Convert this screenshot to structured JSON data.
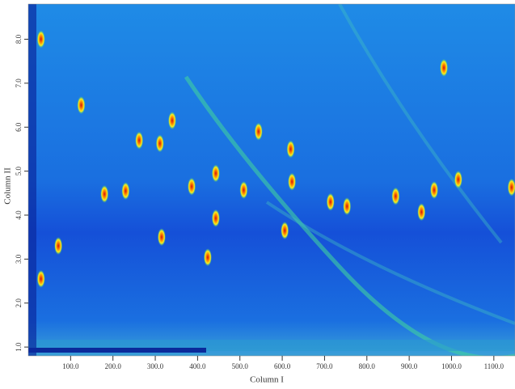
{
  "chart_data": {
    "type": "peaks",
    "x_label": "Column I",
    "y_label": "Column II",
    "xlim": [
      0,
      1150
    ],
    "ylim": [
      0.8,
      8.8
    ],
    "xticks": [
      {
        "value": 100,
        "label": "100.0"
      },
      {
        "value": 200,
        "label": "200.0"
      },
      {
        "value": 300,
        "label": "300.0"
      },
      {
        "value": 400,
        "label": "400.0"
      },
      {
        "value": 500,
        "label": "500.0"
      },
      {
        "value": 600,
        "label": "600.0"
      },
      {
        "value": 700,
        "label": "700.0"
      },
      {
        "value": 800,
        "label": "800.0"
      },
      {
        "value": 900,
        "label": "900.0"
      },
      {
        "value": 1000,
        "label": "1000.0"
      },
      {
        "value": 1100,
        "label": "1100.0"
      }
    ],
    "yticks": [
      {
        "value": 1,
        "label": "1.0"
      },
      {
        "value": 2,
        "label": "2.0"
      },
      {
        "value": 3,
        "label": "3.0"
      },
      {
        "value": 4,
        "label": "4.0"
      },
      {
        "value": 5,
        "label": "5.0"
      },
      {
        "value": 6,
        "label": "6.0"
      },
      {
        "value": 7,
        "label": "7.0"
      },
      {
        "value": 8,
        "label": "8.0"
      }
    ],
    "peaks": {
      "x": [
        30,
        125,
        982,
        30,
        262,
        544,
        620,
        443,
        386,
        230,
        509,
        868,
        929,
        1142,
        443,
        606,
        315,
        424,
        71,
        340,
        311,
        623,
        714,
        959,
        1016,
        180,
        753
      ],
      "y": [
        8.0,
        6.5,
        7.35,
        2.55,
        5.7,
        5.9,
        5.5,
        4.95,
        4.65,
        4.55,
        4.57,
        4.43,
        4.07,
        4.63,
        3.93,
        3.65,
        3.5,
        3.04,
        3.3,
        6.15,
        5.63,
        4.76,
        4.3,
        4.57,
        4.81,
        4.48,
        4.2
      ]
    }
  }
}
